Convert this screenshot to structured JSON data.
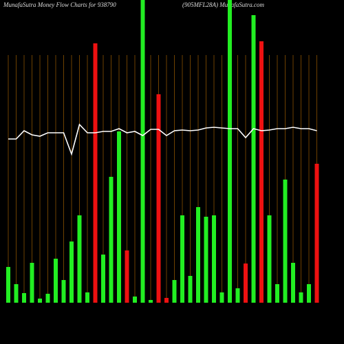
{
  "chart_data": {
    "type": "bar",
    "title": "MunafaSutra  Money Flow  Charts for 938790",
    "subtitle": "(905MFL28A) MunafaSutra.com",
    "categories": [
      null,
      null,
      null,
      null,
      null,
      null,
      null,
      null,
      null,
      null,
      null,
      null,
      null,
      null,
      null,
      null,
      null,
      null,
      null,
      null,
      null,
      null,
      null,
      null,
      null,
      null,
      null,
      null,
      null,
      null,
      null,
      null,
      null,
      null,
      null,
      null,
      null,
      null,
      null,
      null
    ],
    "bars": {
      "values": [
        52,
        27,
        14,
        58,
        6,
        13,
        64,
        33,
        89,
        127,
        15,
        377,
        70,
        183,
        249,
        76,
        9,
        440,
        4,
        303,
        7,
        33,
        127,
        39,
        139,
        125,
        127,
        15,
        440,
        21,
        57,
        418,
        380,
        127,
        27,
        179,
        58,
        15,
        27,
        202
      ],
      "colors": [
        "#22ee22",
        "#22ee22",
        "#22ee22",
        "#22ee22",
        "#22ee22",
        "#22ee22",
        "#22ee22",
        "#22ee22",
        "#22ee22",
        "#22ee22",
        "#22ee22",
        "#ee1111",
        "#22ee22",
        "#22ee22",
        "#22ee22",
        "#ee1111",
        "#22ee22",
        "#22ee22",
        "#22ee22",
        "#ee1111",
        "#ee1111",
        "#22ee22",
        "#22ee22",
        "#22ee22",
        "#22ee22",
        "#22ee22",
        "#22ee22",
        "#22ee22",
        "#22ee22",
        "#22ee22",
        "#ee1111",
        "#22ee22",
        "#ee1111",
        "#22ee22",
        "#22ee22",
        "#22ee22",
        "#22ee22",
        "#22ee22",
        "#22ee22",
        "#ee1111"
      ]
    },
    "line": {
      "color": "#ffffff",
      "values": [
        238,
        238,
        250,
        244,
        242,
        247,
        247,
        247,
        216,
        259,
        247,
        247,
        249,
        249,
        253,
        247,
        249,
        243,
        252,
        252,
        243,
        250,
        251,
        250,
        251,
        254,
        255,
        254,
        253,
        253,
        240,
        253,
        250,
        251,
        253,
        253,
        255,
        253,
        253,
        250
      ]
    },
    "ylim": [
      0,
      440
    ],
    "grid": true,
    "grid_color": "#8a5200"
  }
}
